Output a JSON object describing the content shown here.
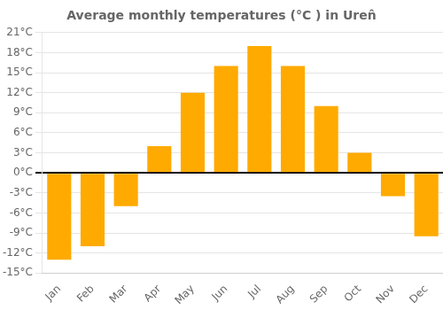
{
  "chart_data": {
    "type": "bar",
    "title": "Average monthly temperatures (°C ) in Uren̂",
    "categories": [
      "Jan",
      "Feb",
      "Mar",
      "Apr",
      "May",
      "Jun",
      "Jul",
      "Aug",
      "Sep",
      "Oct",
      "Nov",
      "Dec"
    ],
    "values": [
      -13,
      -11,
      -5,
      4,
      12,
      16,
      19,
      16,
      10,
      3,
      -3.5,
      -9.5
    ],
    "color": "#FFAA00",
    "ylim": [
      -15,
      21
    ],
    "yticks": [
      {
        "value": -15,
        "label": "-15°C"
      },
      {
        "value": -12,
        "label": "-12°C"
      },
      {
        "value": -9,
        "label": "-9°C"
      },
      {
        "value": -6,
        "label": "-6°C"
      },
      {
        "value": -3,
        "label": "-3°C"
      },
      {
        "value": 0,
        "label": "0°C"
      },
      {
        "value": 3,
        "label": "3°C"
      },
      {
        "value": 6,
        "label": "6°C"
      },
      {
        "value": 9,
        "label": "9°C"
      },
      {
        "value": 12,
        "label": "12°C"
      },
      {
        "value": 15,
        "label": "15°C"
      },
      {
        "value": 18,
        "label": "18°C"
      },
      {
        "value": 21,
        "label": "21°C"
      }
    ],
    "grid": true
  }
}
